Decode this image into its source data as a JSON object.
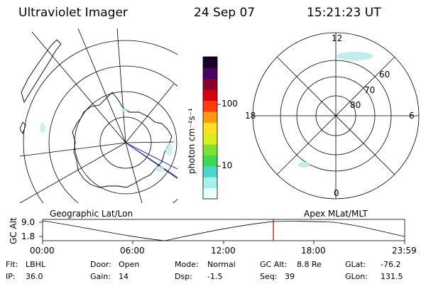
{
  "header": {
    "instrument": "Ultraviolet Imager",
    "date": "24 Sep 07",
    "time": "15:21:23 UT"
  },
  "geo_panel": {
    "label": "Geographic Lat/Lon"
  },
  "colorbar": {
    "unit": "photon cm⁻²s⁻¹",
    "ticks": [
      "100",
      "10"
    ],
    "scale": "log"
  },
  "mag_panel": {
    "label": "Apex MLat/MLT",
    "mlt_labels": {
      "top": "12",
      "bottom": "0",
      "left": "18",
      "right": "6"
    },
    "lat_labels": [
      "60",
      "70",
      "80"
    ]
  },
  "alt_plot": {
    "ylabel": "GC Alt",
    "yticks": [
      "9.0",
      "1.8"
    ],
    "xticks": [
      "00:00",
      "06:00",
      "12:00",
      "18:00",
      "23:59"
    ],
    "current_marker_time": "15:21"
  },
  "info": {
    "flt_label": "Flt:",
    "flt_value": "LBHL",
    "ip_label": "IP:",
    "ip_value": "36.0",
    "door_label": "Door:",
    "door_value": "Open",
    "gain_label": "Gain:",
    "gain_value": "14",
    "mode_label": "Mode:",
    "mode_value": "Normal",
    "dsp_label": "Dsp:",
    "dsp_value": "-1.5",
    "gcalt_label": "GC Alt:",
    "gcalt_value": "8.8 Re",
    "seq_label": "Seq:",
    "seq_value": "39",
    "glat_label": "GLat:",
    "glat_value": "-76.2",
    "glon_label": "GLon:",
    "glon_value": "131.5"
  },
  "colors": {
    "line": "#000000",
    "marker": "#cc0000",
    "aurora": "#9fe3e3",
    "colorbar_stops": [
      "#eaffff",
      "#a8f0ee",
      "#4fd6d0",
      "#3ad95a",
      "#7fe030",
      "#d8ee20",
      "#ffe020",
      "#ff9a10",
      "#ff3a10",
      "#d80010",
      "#8a0028",
      "#4a0060",
      "#18002a"
    ]
  }
}
